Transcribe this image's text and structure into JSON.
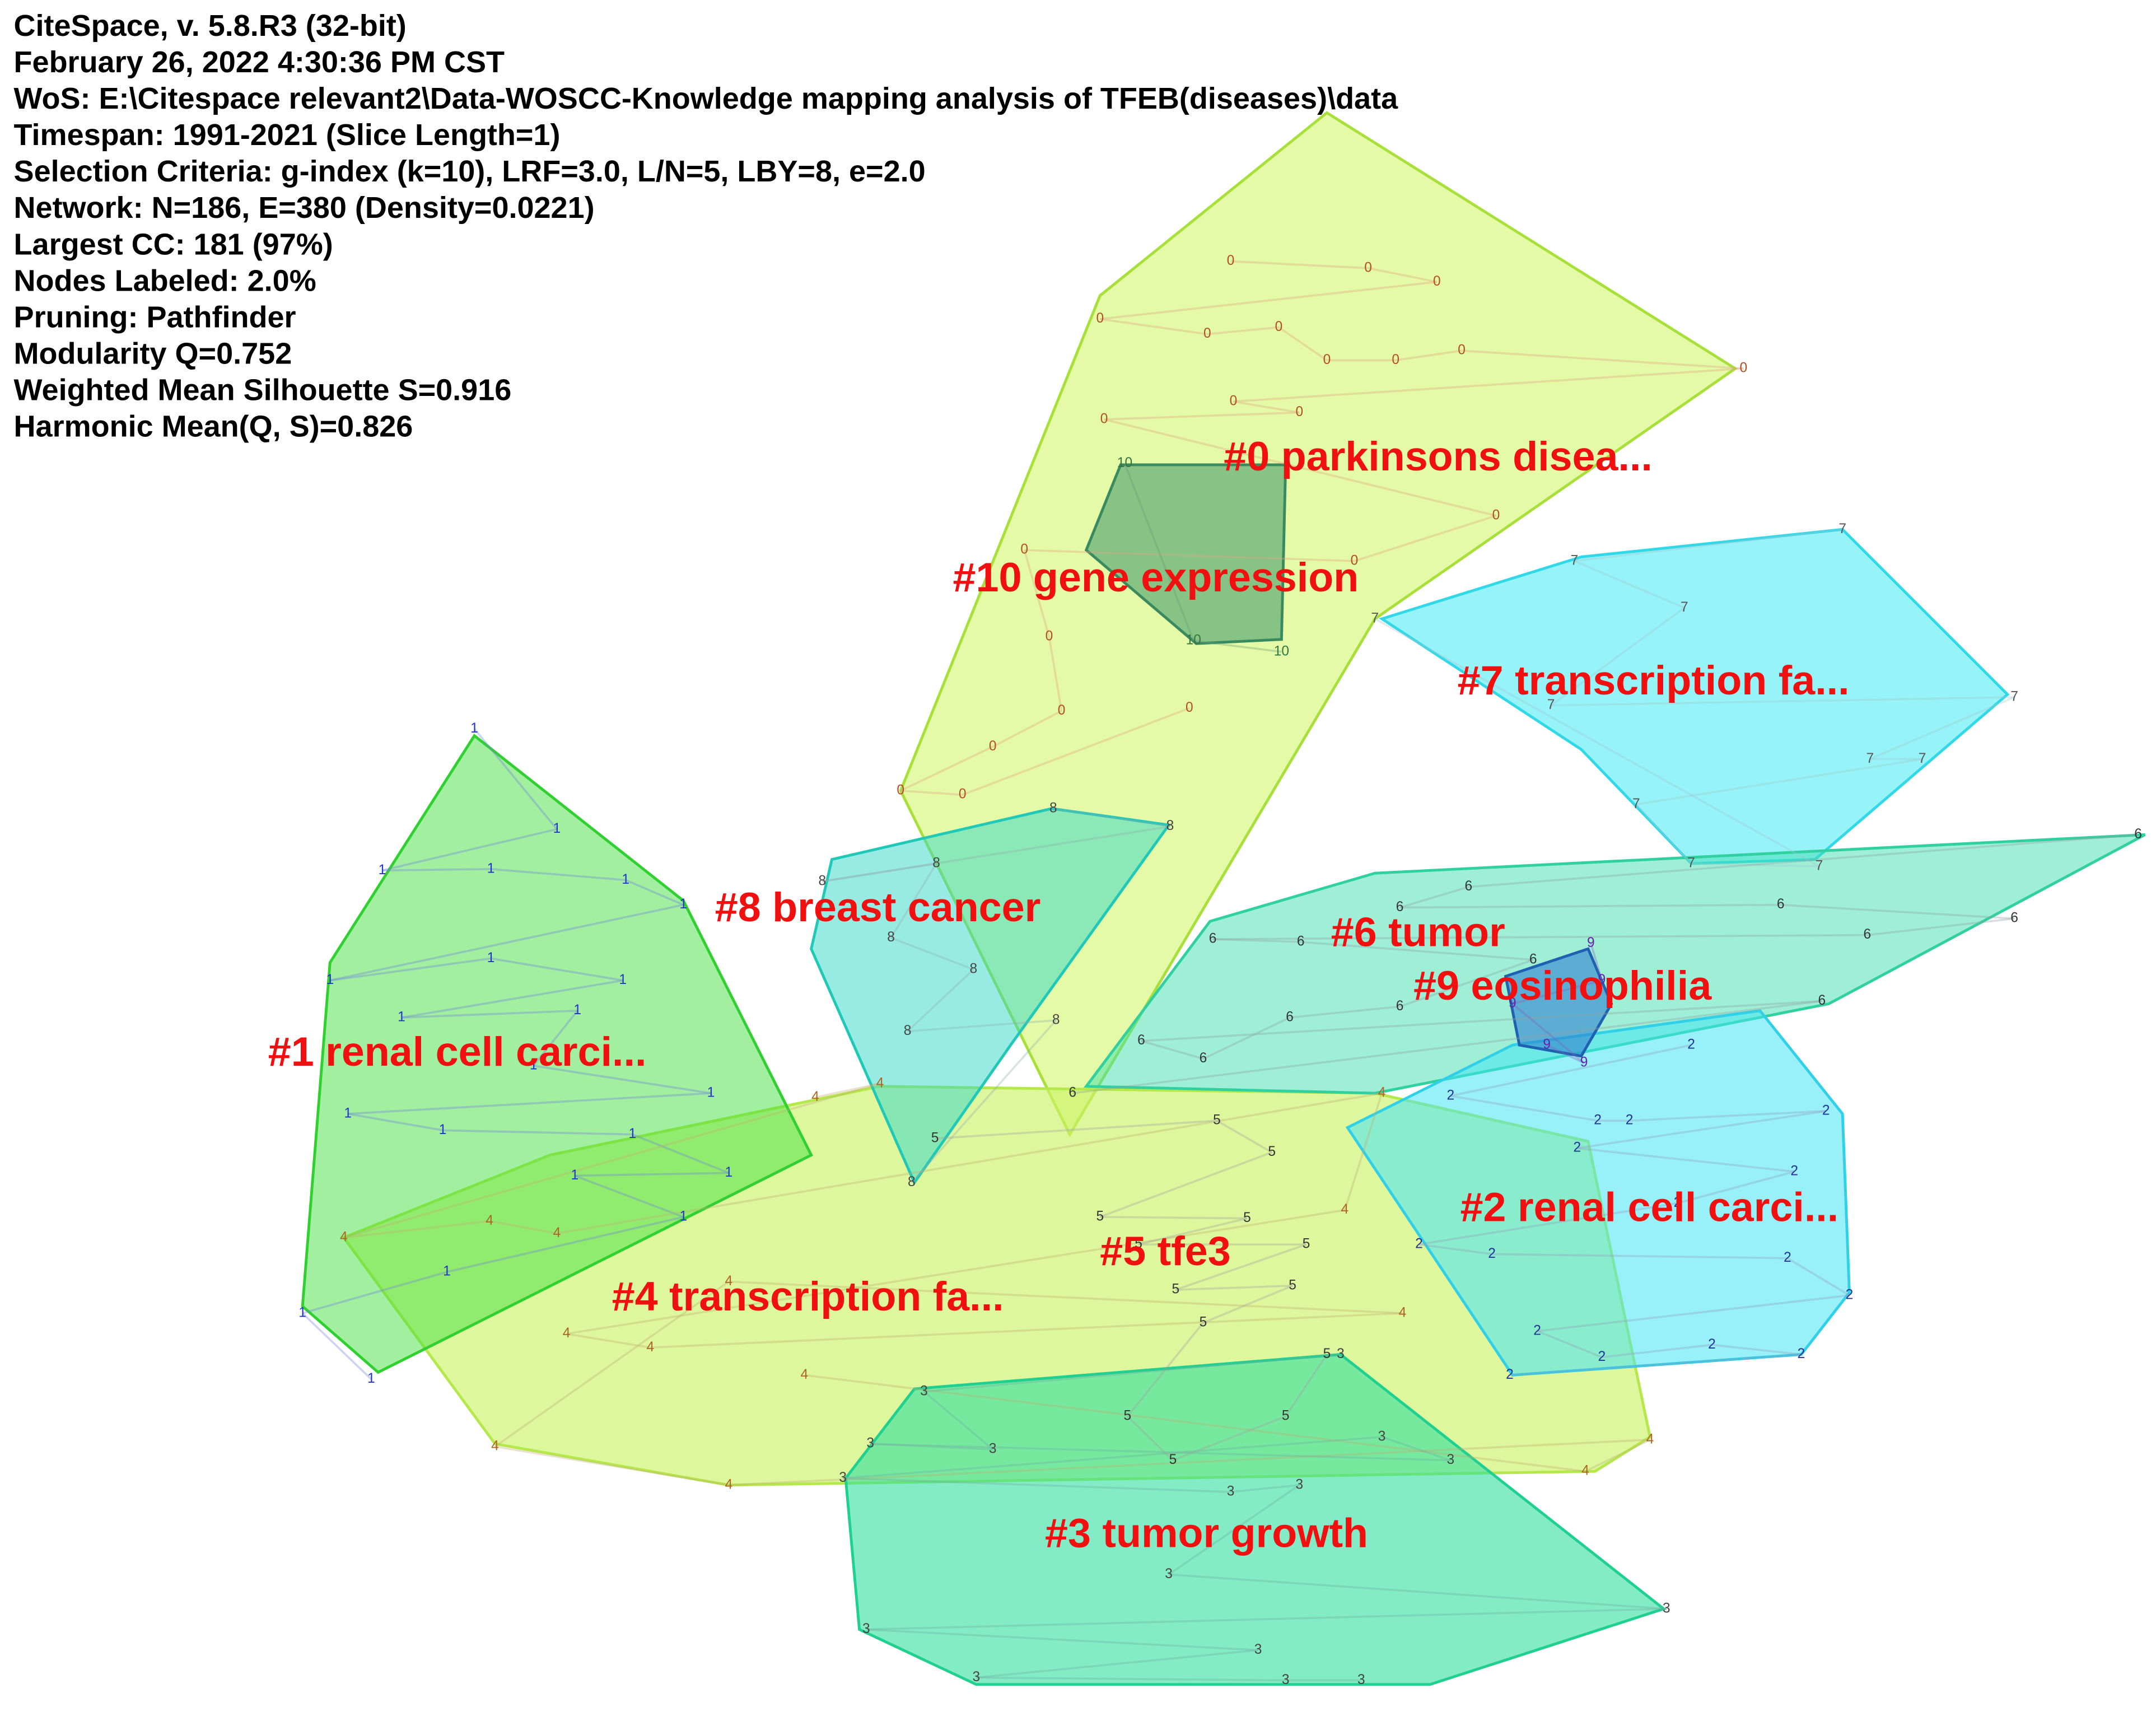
{
  "header": {
    "lines": [
      "CiteSpace, v. 5.8.R3 (32-bit)",
      "February 26, 2022 4:30:36 PM CST",
      "WoS: E:\\Citespace relevant2\\Data-WOSCC-Knowledge mapping analysis of TFEB(diseases)\\data",
      "Timespan: 1991-2021 (Slice Length=1)",
      "Selection Criteria: g-index (k=10), LRF=3.0, L/N=5, LBY=8, e=2.0",
      "Network: N=186, E=380 (Density=0.0221)",
      "Largest CC: 181 (97%)",
      "Nodes Labeled: 2.0%",
      "Pruning: Pathfinder",
      "Modularity Q=0.752",
      "Weighted Mean Silhouette S=0.916",
      "Harmonic Mean(Q, S)=0.826"
    ]
  },
  "clusters": [
    {
      "label": "#0 parkinsons disea..."
    },
    {
      "label": "#10 gene expression"
    },
    {
      "label": "#7 transcription fa..."
    },
    {
      "label": "#8 breast cancer"
    },
    {
      "label": "#6 tumor"
    },
    {
      "label": "#9 eosinophilia"
    },
    {
      "label": "#1 renal cell carci..."
    },
    {
      "label": "#2 renal cell carci..."
    },
    {
      "label": "#5 tfe3"
    },
    {
      "label": "#4 transcription fa..."
    },
    {
      "label": "#3 tumor growth"
    }
  ],
  "nodes": [
    [
      "0",
      "0",
      "0",
      "0",
      "0",
      "0",
      "0",
      "0",
      "0",
      "0",
      "0",
      "0",
      "0",
      "0",
      "0",
      "0",
      "0",
      "0",
      "0",
      "0",
      "0",
      "0"
    ],
    [
      "10",
      "10",
      "10"
    ],
    [
      "7",
      "7",
      "7",
      "7",
      "7",
      "7",
      "7",
      "7",
      "7",
      "7",
      "7"
    ],
    [
      "1",
      "1",
      "1",
      "1",
      "1",
      "1",
      "1",
      "1",
      "1",
      "1",
      "1",
      "1",
      "1",
      "1",
      "1",
      "1",
      "1",
      "1",
      "1",
      "1",
      "1",
      "1"
    ],
    [
      "8",
      "8",
      "8",
      "8",
      "8",
      "8",
      "8",
      "8",
      "8"
    ],
    [
      "6",
      "6",
      "6",
      "6",
      "6",
      "6",
      "6",
      "6",
      "6",
      "6",
      "6",
      "6",
      "6",
      "6",
      "6"
    ],
    [
      "9",
      "9",
      "9",
      "9",
      "9"
    ],
    [
      "2",
      "2",
      "2",
      "2",
      "2",
      "2",
      "2",
      "2",
      "2",
      "2",
      "2",
      "2",
      "2",
      "2",
      "2",
      "2",
      "2"
    ],
    [
      "4",
      "4",
      "4",
      "4",
      "4",
      "4",
      "4",
      "4",
      "4",
      "4",
      "4",
      "4",
      "4",
      "4",
      "4",
      "4"
    ],
    [
      "5",
      "5",
      "5",
      "5",
      "5",
      "5",
      "5",
      "5",
      "5",
      "5",
      "5",
      "5",
      "5",
      "5"
    ],
    [
      "3",
      "3",
      "3",
      "3",
      "3",
      "3",
      "3",
      "3",
      "3",
      "3",
      "3",
      "3",
      "3",
      "3",
      "3",
      "3"
    ]
  ]
}
